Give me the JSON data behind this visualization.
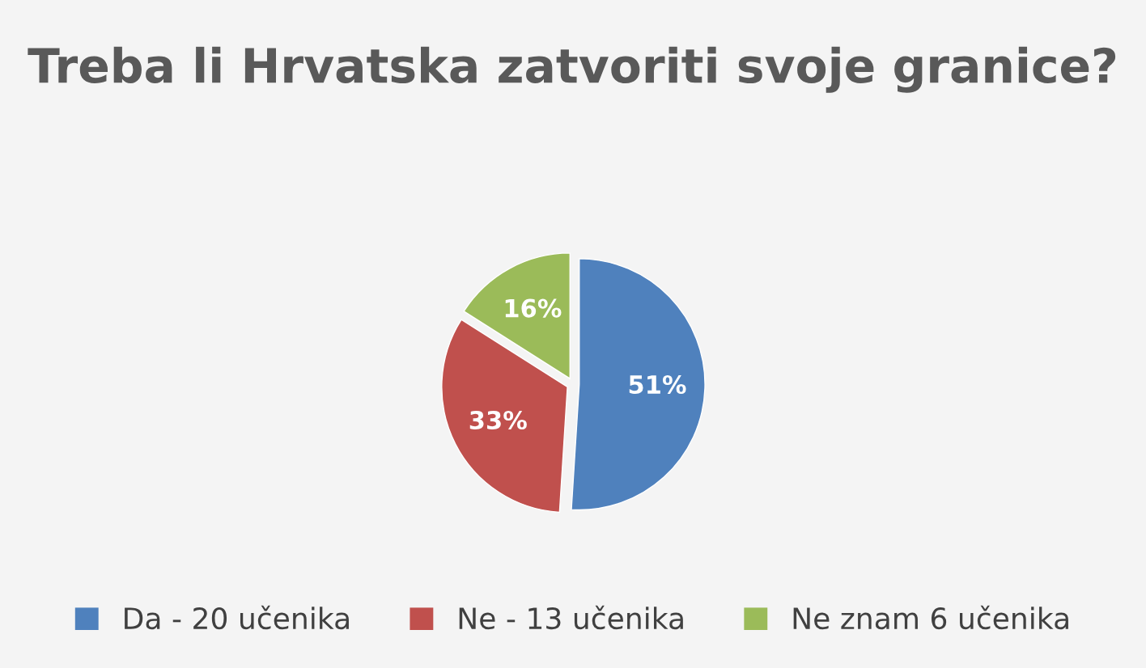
{
  "chart_data": {
    "type": "pie",
    "title": "Treba li Hrvatska zatvoriti svoje granice?",
    "categories": [
      "Da - 20 učenika",
      "Ne - 13 učenika",
      "Ne znam 6 učenika"
    ],
    "values": [
      51,
      33,
      16
    ],
    "colors": [
      "#4f81bd",
      "#c0504d",
      "#9bbb59"
    ],
    "value_labels": [
      "51%",
      "33%",
      "16%"
    ],
    "legend": "bottom"
  }
}
